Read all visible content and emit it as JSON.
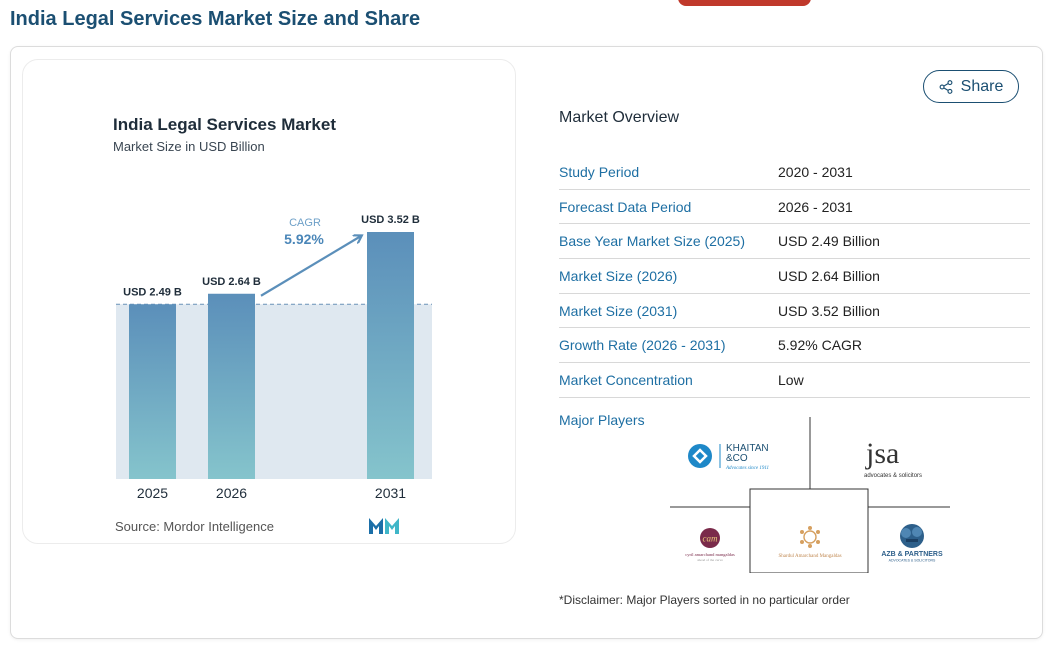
{
  "page": {
    "title": "India Legal Services Market Size and Share"
  },
  "chart_data": {
    "type": "bar",
    "title": "India Legal Services Market",
    "subtitle": "Market Size in USD Billion",
    "categories": [
      "2025",
      "2026",
      "2031"
    ],
    "values": [
      2.49,
      2.64,
      3.52
    ],
    "data_labels": [
      "USD 2.49 B",
      "USD 2.64 B",
      "USD 3.52 B"
    ],
    "cagr_label": "CAGR",
    "cagr_value": "5.92%",
    "ylim": [
      0,
      3.52
    ],
    "grid": false,
    "source": "Source: Mordor Intelligence",
    "colors": {
      "bar_top": "#5b8fba",
      "bar_bottom": "#85c4cc",
      "band": "#dfe8f0",
      "arrow": "#5b8fba",
      "reference_line": "#6b93b8"
    }
  },
  "share": {
    "label": "Share",
    "icon": "share-icon"
  },
  "overview": {
    "title": "Market Overview",
    "rows": [
      {
        "label": "Study Period",
        "value": "2020 - 2031"
      },
      {
        "label": "Forecast Data Period",
        "value": "2026 - 2031"
      },
      {
        "label": "Base Year Market Size (2025)",
        "value": "USD 2.49 Billion"
      },
      {
        "label": "Market Size (2026)",
        "value": "USD 2.64 Billion"
      },
      {
        "label": "Market Size (2031)",
        "value": "USD 3.52 Billion"
      },
      {
        "label": "Growth Rate (2026 - 2031)",
        "value": "5.92% CAGR"
      },
      {
        "label": "Market Concentration",
        "value": "Low"
      }
    ]
  },
  "players": {
    "label": "Major Players",
    "logos": [
      {
        "name": "KHAITAN &CO",
        "line1": "KHAITAN",
        "line2": "&CO",
        "tagline": "Advocates since 1911"
      },
      {
        "name": "jsa",
        "mark": "jsa",
        "tagline": "advocates & solicitors"
      },
      {
        "name": "cyril amarchand mangaldas",
        "mark": "cam",
        "line1": "cyril amarchand mangaldas",
        "tagline": "ahead of the curve"
      },
      {
        "name": "Shardul Amarchand Mangaldas",
        "line1": "Shardul Amarchand Mangaldas"
      },
      {
        "name": "AZB & PARTNERS",
        "line1": "AZB & PARTNERS",
        "tagline": "ADVOCATES & SOLICITORS"
      }
    ]
  },
  "disclaimer": "*Disclaimer: Major Players sorted in no particular order"
}
